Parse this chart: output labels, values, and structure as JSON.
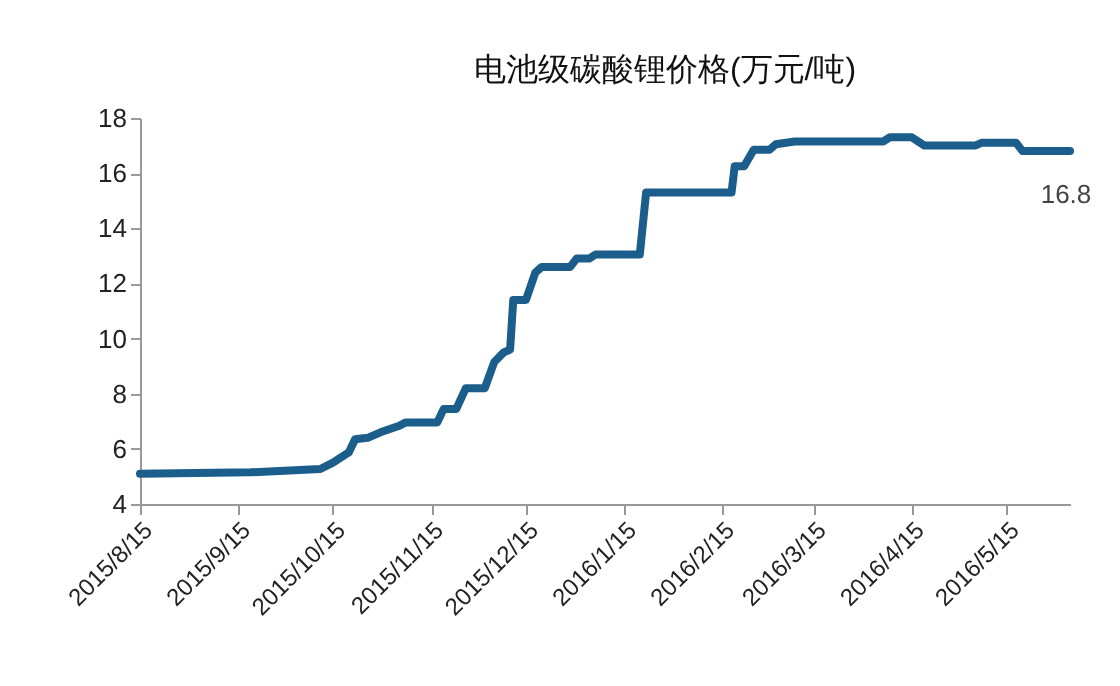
{
  "chart_data": {
    "type": "line",
    "title": "电池级碳酸锂价格(万元/吨)",
    "x": [
      "2015-08-15",
      "2015-09-19",
      "2015-10-11",
      "2015-10-15",
      "2015-10-20",
      "2015-10-22",
      "2015-10-26",
      "2015-10-30",
      "2015-11-05",
      "2015-11-07",
      "2015-11-17",
      "2015-11-19",
      "2015-11-23",
      "2015-11-26",
      "2015-12-02",
      "2015-12-05",
      "2015-12-08",
      "2015-12-10",
      "2015-12-11",
      "2015-12-15",
      "2015-12-18",
      "2015-12-20",
      "2015-12-29",
      "2015-12-31",
      "2016-01-04",
      "2016-01-06",
      "2016-01-20",
      "2016-01-22",
      "2016-02-18",
      "2016-02-19",
      "2016-02-22",
      "2016-02-25",
      "2016-03-01",
      "2016-03-03",
      "2016-03-09",
      "2016-04-06",
      "2016-04-08",
      "2016-04-15",
      "2016-04-19",
      "2016-05-05",
      "2016-05-07",
      "2016-05-18",
      "2016-05-20",
      "2016-06-04"
    ],
    "series": [
      {
        "color": "#1b5e8c",
        "values": [
          5.1,
          5.15,
          5.27,
          5.5,
          5.87,
          6.35,
          6.4,
          6.6,
          6.84,
          6.96,
          6.96,
          7.45,
          7.45,
          8.2,
          8.2,
          9.15,
          9.5,
          9.6,
          11.4,
          11.4,
          12.4,
          12.6,
          12.6,
          12.9,
          12.9,
          13.05,
          13.05,
          15.3,
          15.3,
          16.25,
          16.25,
          16.85,
          16.85,
          17.05,
          17.15,
          17.15,
          17.3,
          17.3,
          17.0,
          17.0,
          17.1,
          17.1,
          16.8,
          16.8
        ]
      }
    ],
    "xlim": [
      "2015-08-15",
      "2016-06-04"
    ],
    "xticks": [
      {
        "value": "2015-08-15",
        "label": "2015/8/15"
      },
      {
        "value": "2015-09-15",
        "label": "2015/9/15"
      },
      {
        "value": "2015-10-15",
        "label": "2015/10/15"
      },
      {
        "value": "2015-11-15",
        "label": "2015/11/15"
      },
      {
        "value": "2015-12-15",
        "label": "2015/12/15"
      },
      {
        "value": "2016-01-15",
        "label": "2016/1/15"
      },
      {
        "value": "2016-02-15",
        "label": "2016/2/15"
      },
      {
        "value": "2016-03-15",
        "label": "2016/3/15"
      },
      {
        "value": "2016-04-15",
        "label": "2016/4/15"
      },
      {
        "value": "2016-05-15",
        "label": "2016/5/15"
      }
    ],
    "ylim": [
      4,
      18
    ],
    "yticks": [
      4,
      6,
      8,
      10,
      12,
      14,
      16,
      18
    ],
    "grid": false,
    "line_style": "solid",
    "annotations": [
      {
        "text": "16.8",
        "x": "2016-06-04",
        "y": 16.8
      }
    ]
  }
}
